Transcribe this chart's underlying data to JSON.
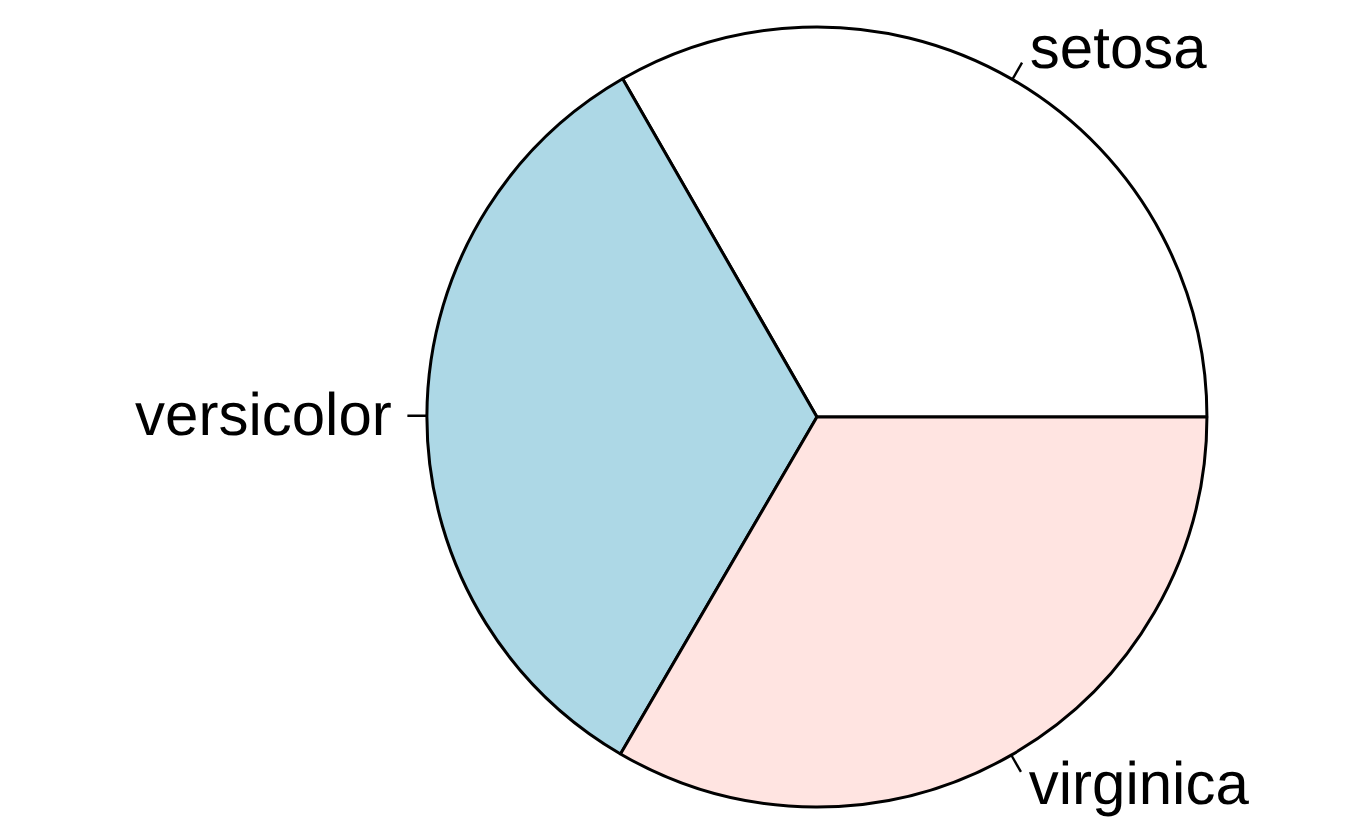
{
  "chart_data": {
    "type": "pie",
    "categories": [
      "setosa",
      "versicolor",
      "virginica"
    ],
    "values": [
      33.3,
      33.3,
      33.4
    ],
    "colors": [
      "#ffffff",
      "#add8e6",
      "#ffe4e1"
    ]
  }
}
